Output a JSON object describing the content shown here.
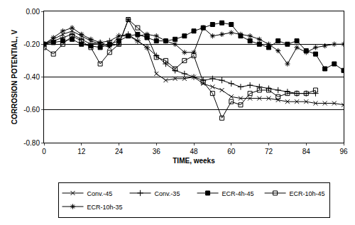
{
  "chart_data": {
    "type": "line",
    "x_label": "TIME, weeks",
    "y_label": "CORROSION POTENTIAL, V",
    "x": [
      0,
      3,
      6,
      9,
      12,
      15,
      18,
      21,
      24,
      27,
      30,
      33,
      36,
      39,
      42,
      45,
      48,
      51,
      54,
      57,
      60,
      63,
      66,
      69,
      72,
      75,
      78,
      81,
      84,
      87,
      90,
      93,
      96
    ],
    "series": [
      {
        "name": "Conv.-45",
        "color": "#000000",
        "marker": "x",
        "line_style": "solid",
        "values": [
          -0.2,
          -0.17,
          -0.14,
          -0.12,
          -0.15,
          -0.18,
          -0.2,
          -0.22,
          -0.15,
          -0.15,
          -0.18,
          -0.22,
          -0.38,
          -0.42,
          -0.41,
          -0.41,
          -0.4,
          -0.44,
          -0.46,
          -0.48,
          -0.52,
          -0.53,
          -0.53,
          -0.53,
          -0.53,
          -0.54,
          -0.55,
          -0.55,
          -0.55,
          -0.56,
          -0.56,
          -0.56,
          -0.57
        ]
      },
      {
        "name": "Conv.-35",
        "color": "#000000",
        "marker": "plus",
        "line_style": "solid",
        "values": [
          -0.2,
          -0.18,
          -0.16,
          -0.14,
          -0.17,
          -0.2,
          -0.19,
          -0.18,
          -0.15,
          -0.14,
          -0.18,
          -0.22,
          -0.27,
          -0.32,
          -0.36,
          -0.38,
          -0.4,
          -0.42,
          -0.41,
          -0.42,
          -0.44,
          -0.46,
          -0.45,
          -0.46,
          -0.47,
          -0.48,
          -0.49,
          -0.5,
          -0.5,
          -0.5,
          null,
          null,
          null
        ]
      },
      {
        "name": "ECR-4h-45",
        "color": "#000000",
        "marker": "square",
        "line_style": "solid",
        "values": [
          -0.2,
          -0.19,
          -0.18,
          -0.17,
          -0.2,
          -0.21,
          -0.22,
          -0.2,
          -0.18,
          -0.15,
          -0.14,
          -0.16,
          -0.18,
          -0.18,
          -0.17,
          -0.15,
          -0.12,
          -0.1,
          -0.08,
          -0.07,
          -0.08,
          -0.15,
          -0.18,
          -0.2,
          -0.22,
          -0.18,
          -0.2,
          -0.18,
          -0.24,
          -0.26,
          -0.35,
          -0.32,
          -0.36
        ]
      },
      {
        "name": "ECR-10h-45",
        "color": "#000000",
        "marker": "square-open",
        "line_style": "solid",
        "values": [
          -0.22,
          -0.26,
          -0.2,
          -0.15,
          -0.18,
          -0.22,
          -0.32,
          -0.25,
          -0.2,
          -0.05,
          -0.1,
          -0.15,
          -0.28,
          -0.3,
          -0.35,
          -0.3,
          -0.27,
          -0.43,
          -0.5,
          -0.65,
          -0.55,
          -0.57,
          -0.5,
          -0.48,
          -0.48,
          -0.52,
          -0.5,
          -0.5,
          -0.5,
          -0.48,
          null,
          null,
          null
        ]
      },
      {
        "name": "ECR-10h-35",
        "color": "#000000",
        "marker": "asterisk",
        "line_style": "solid",
        "values": [
          -0.2,
          -0.16,
          -0.12,
          -0.1,
          -0.14,
          -0.17,
          -0.19,
          -0.21,
          -0.2,
          -0.05,
          -0.15,
          -0.14,
          -0.15,
          -0.18,
          -0.2,
          -0.25,
          -0.25,
          -0.1,
          -0.15,
          -0.14,
          -0.13,
          -0.14,
          -0.15,
          -0.17,
          -0.2,
          -0.24,
          -0.32,
          -0.22,
          -0.25,
          -0.22,
          -0.21,
          -0.2,
          -0.2
        ]
      }
    ],
    "xlim": [
      0,
      96
    ],
    "xticks": [
      0,
      12,
      24,
      36,
      48,
      60,
      72,
      84,
      96
    ],
    "ylim": [
      -0.8,
      0
    ],
    "yticks": [
      {
        "value": -0.8,
        "label": "-0.80"
      },
      {
        "value": -0.6,
        "label": "-0.60"
      },
      {
        "value": -0.4,
        "label": "-0.40"
      },
      {
        "value": -0.2,
        "label": "-0.20"
      },
      {
        "value": 0,
        "label": "0.00"
      }
    ],
    "grid": true,
    "legend": "bottom"
  }
}
